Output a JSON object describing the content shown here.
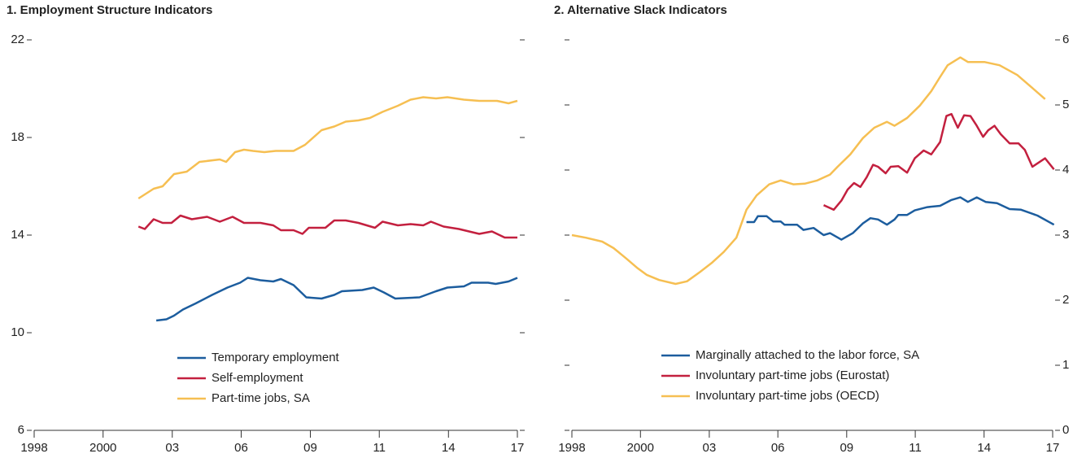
{
  "chart_data": [
    {
      "type": "line",
      "title": "1. Employment Structure Indicators",
      "xlim": [
        1998,
        2017
      ],
      "xticks": [
        {
          "value": 1998,
          "label": "1998"
        },
        {
          "value": 2000.71,
          "label": "2000"
        },
        {
          "value": 2003.43,
          "label": "03"
        },
        {
          "value": 2006.14,
          "label": "06"
        },
        {
          "value": 2008.86,
          "label": "09"
        },
        {
          "value": 2011.57,
          "label": "11"
        },
        {
          "value": 2014.29,
          "label": "14"
        },
        {
          "value": 2017,
          "label": "17"
        }
      ],
      "ylim": [
        6,
        22
      ],
      "yticks": [
        6,
        10,
        14,
        18,
        22
      ],
      "yaxis_side": "left",
      "legend": "bottom",
      "series": [
        {
          "name": "Temporary employment",
          "color": "#1c5d9e",
          "x": [
            2002.8,
            2003.2,
            2003.5,
            2003.85,
            2004.35,
            2005.0,
            2005.6,
            2006.1,
            2006.4,
            2006.9,
            2007.4,
            2007.7,
            2008.2,
            2008.7,
            2009.3,
            2009.8,
            2010.1,
            2010.9,
            2011.35,
            2011.75,
            2012.2,
            2013.15,
            2013.8,
            2014.25,
            2014.9,
            2015.2,
            2015.85,
            2016.15,
            2016.65,
            2017.0
          ],
          "values": [
            10.5,
            10.55,
            10.7,
            10.95,
            11.2,
            11.55,
            11.85,
            12.05,
            12.25,
            12.15,
            12.1,
            12.2,
            11.95,
            11.45,
            11.4,
            11.55,
            11.7,
            11.75,
            11.85,
            11.65,
            11.4,
            11.45,
            11.7,
            11.85,
            11.9,
            12.05,
            12.05,
            12.0,
            12.1,
            12.25
          ]
        },
        {
          "name": "Self-employment",
          "color": "#c3203f",
          "x": [
            2002.1,
            2002.35,
            2002.7,
            2003.05,
            2003.4,
            2003.75,
            2004.2,
            2004.8,
            2005.3,
            2005.8,
            2006.25,
            2006.9,
            2007.4,
            2007.7,
            2008.2,
            2008.55,
            2008.8,
            2009.45,
            2009.8,
            2010.25,
            2010.75,
            2011.4,
            2011.7,
            2012.3,
            2012.8,
            2013.3,
            2013.6,
            2014.1,
            2014.7,
            2015.5,
            2016.0,
            2016.5,
            2017.0
          ],
          "values": [
            14.35,
            14.25,
            14.65,
            14.5,
            14.5,
            14.8,
            14.65,
            14.75,
            14.55,
            14.75,
            14.5,
            14.5,
            14.4,
            14.2,
            14.2,
            14.05,
            14.3,
            14.3,
            14.6,
            14.6,
            14.5,
            14.3,
            14.55,
            14.4,
            14.45,
            14.4,
            14.55,
            14.35,
            14.25,
            14.05,
            14.15,
            13.9,
            13.9
          ]
        },
        {
          "name": "Part-time jobs, SA",
          "color": "#f6bf52",
          "x": [
            2002.1,
            2002.7,
            2003.05,
            2003.5,
            2004.0,
            2004.5,
            2005.3,
            2005.55,
            2005.9,
            2006.25,
            2006.6,
            2007.05,
            2007.5,
            2008.2,
            2008.65,
            2009.3,
            2009.8,
            2010.25,
            2010.75,
            2011.2,
            2011.7,
            2012.3,
            2012.8,
            2013.3,
            2013.8,
            2014.25,
            2014.9,
            2015.5,
            2016.2,
            2016.65,
            2017.0
          ],
          "values": [
            15.5,
            15.9,
            16.0,
            16.5,
            16.6,
            17.0,
            17.1,
            17.0,
            17.4,
            17.5,
            17.45,
            17.4,
            17.45,
            17.45,
            17.7,
            18.3,
            18.45,
            18.65,
            18.7,
            18.8,
            19.05,
            19.3,
            19.55,
            19.65,
            19.6,
            19.65,
            19.55,
            19.5,
            19.5,
            19.4,
            19.5
          ]
        }
      ]
    },
    {
      "type": "line",
      "title": "2. Alternative Slack Indicators",
      "xlim": [
        1998,
        2017
      ],
      "xticks": [
        {
          "value": 1998,
          "label": "1998"
        },
        {
          "value": 2000.71,
          "label": "2000"
        },
        {
          "value": 2003.43,
          "label": "03"
        },
        {
          "value": 2006.14,
          "label": "06"
        },
        {
          "value": 2008.86,
          "label": "09"
        },
        {
          "value": 2011.57,
          "label": "11"
        },
        {
          "value": 2014.29,
          "label": "14"
        },
        {
          "value": 2017,
          "label": "17"
        }
      ],
      "ylim": [
        0,
        6
      ],
      "yticks": [
        0,
        1,
        2,
        3,
        4,
        5,
        6
      ],
      "yaxis_side": "right",
      "legend": "bottom",
      "series": [
        {
          "name": "Marginally attached to the labor force, SA",
          "color": "#1c5d9e",
          "x": [
            2004.9,
            2005.2,
            2005.35,
            2005.7,
            2005.95,
            2006.25,
            2006.4,
            2006.9,
            2007.15,
            2007.55,
            2007.95,
            2008.2,
            2008.65,
            2009.1,
            2009.5,
            2009.8,
            2010.1,
            2010.45,
            2010.75,
            2010.9,
            2011.25,
            2011.55,
            2012.05,
            2012.55,
            2012.7,
            2013.0,
            2013.35,
            2013.65,
            2014.0,
            2014.35,
            2014.8,
            2015.3,
            2015.75,
            2016.4,
            2017.05
          ],
          "values": [
            3.2,
            3.2,
            3.29,
            3.29,
            3.21,
            3.21,
            3.16,
            3.16,
            3.08,
            3.11,
            3.0,
            3.03,
            2.93,
            3.03,
            3.18,
            3.26,
            3.24,
            3.16,
            3.24,
            3.31,
            3.31,
            3.38,
            3.43,
            3.45,
            3.48,
            3.54,
            3.58,
            3.51,
            3.58,
            3.51,
            3.49,
            3.4,
            3.39,
            3.3,
            3.16
          ]
        },
        {
          "name": "Involuntary part-time jobs (Eurostat)",
          "color": "#c3203f",
          "x": [
            2007.95,
            2008.35,
            2008.65,
            2008.9,
            2009.15,
            2009.4,
            2009.65,
            2009.9,
            2010.1,
            2010.4,
            2010.6,
            2010.9,
            2011.25,
            2011.55,
            2011.9,
            2012.2,
            2012.55,
            2012.8,
            2013.0,
            2013.25,
            2013.5,
            2013.75,
            2014.0,
            2014.25,
            2014.45,
            2014.7,
            2014.95,
            2015.3,
            2015.65,
            2015.9,
            2016.2,
            2016.7,
            2017.05
          ],
          "values": [
            3.46,
            3.39,
            3.53,
            3.7,
            3.8,
            3.74,
            3.89,
            4.08,
            4.05,
            3.95,
            4.05,
            4.06,
            3.96,
            4.18,
            4.3,
            4.24,
            4.43,
            4.83,
            4.86,
            4.65,
            4.84,
            4.83,
            4.68,
            4.51,
            4.61,
            4.68,
            4.55,
            4.41,
            4.41,
            4.31,
            4.05,
            4.18,
            4.01
          ]
        },
        {
          "name": "Involuntary part-time jobs (OECD)",
          "color": "#f6bf52",
          "x": [
            1998.0,
            1998.55,
            1999.2,
            1999.65,
            2000.15,
            2000.6,
            2000.95,
            2001.45,
            2002.1,
            2002.55,
            2003.05,
            2003.55,
            2004.0,
            2004.5,
            2004.9,
            2005.3,
            2005.8,
            2006.25,
            2006.75,
            2007.2,
            2007.7,
            2008.2,
            2008.5,
            2009.0,
            2009.5,
            2009.95,
            2010.45,
            2010.75,
            2011.25,
            2011.75,
            2012.2,
            2012.55,
            2012.85,
            2013.35,
            2013.65,
            2014.3,
            2014.9,
            2015.6,
            2016.2,
            2016.7
          ],
          "values": [
            3.0,
            2.96,
            2.9,
            2.8,
            2.64,
            2.49,
            2.39,
            2.31,
            2.25,
            2.29,
            2.43,
            2.58,
            2.74,
            2.96,
            3.39,
            3.61,
            3.78,
            3.84,
            3.78,
            3.79,
            3.84,
            3.93,
            4.05,
            4.24,
            4.49,
            4.65,
            4.74,
            4.68,
            4.8,
            4.99,
            5.21,
            5.43,
            5.61,
            5.73,
            5.66,
            5.66,
            5.61,
            5.46,
            5.26,
            5.09
          ]
        }
      ]
    }
  ]
}
